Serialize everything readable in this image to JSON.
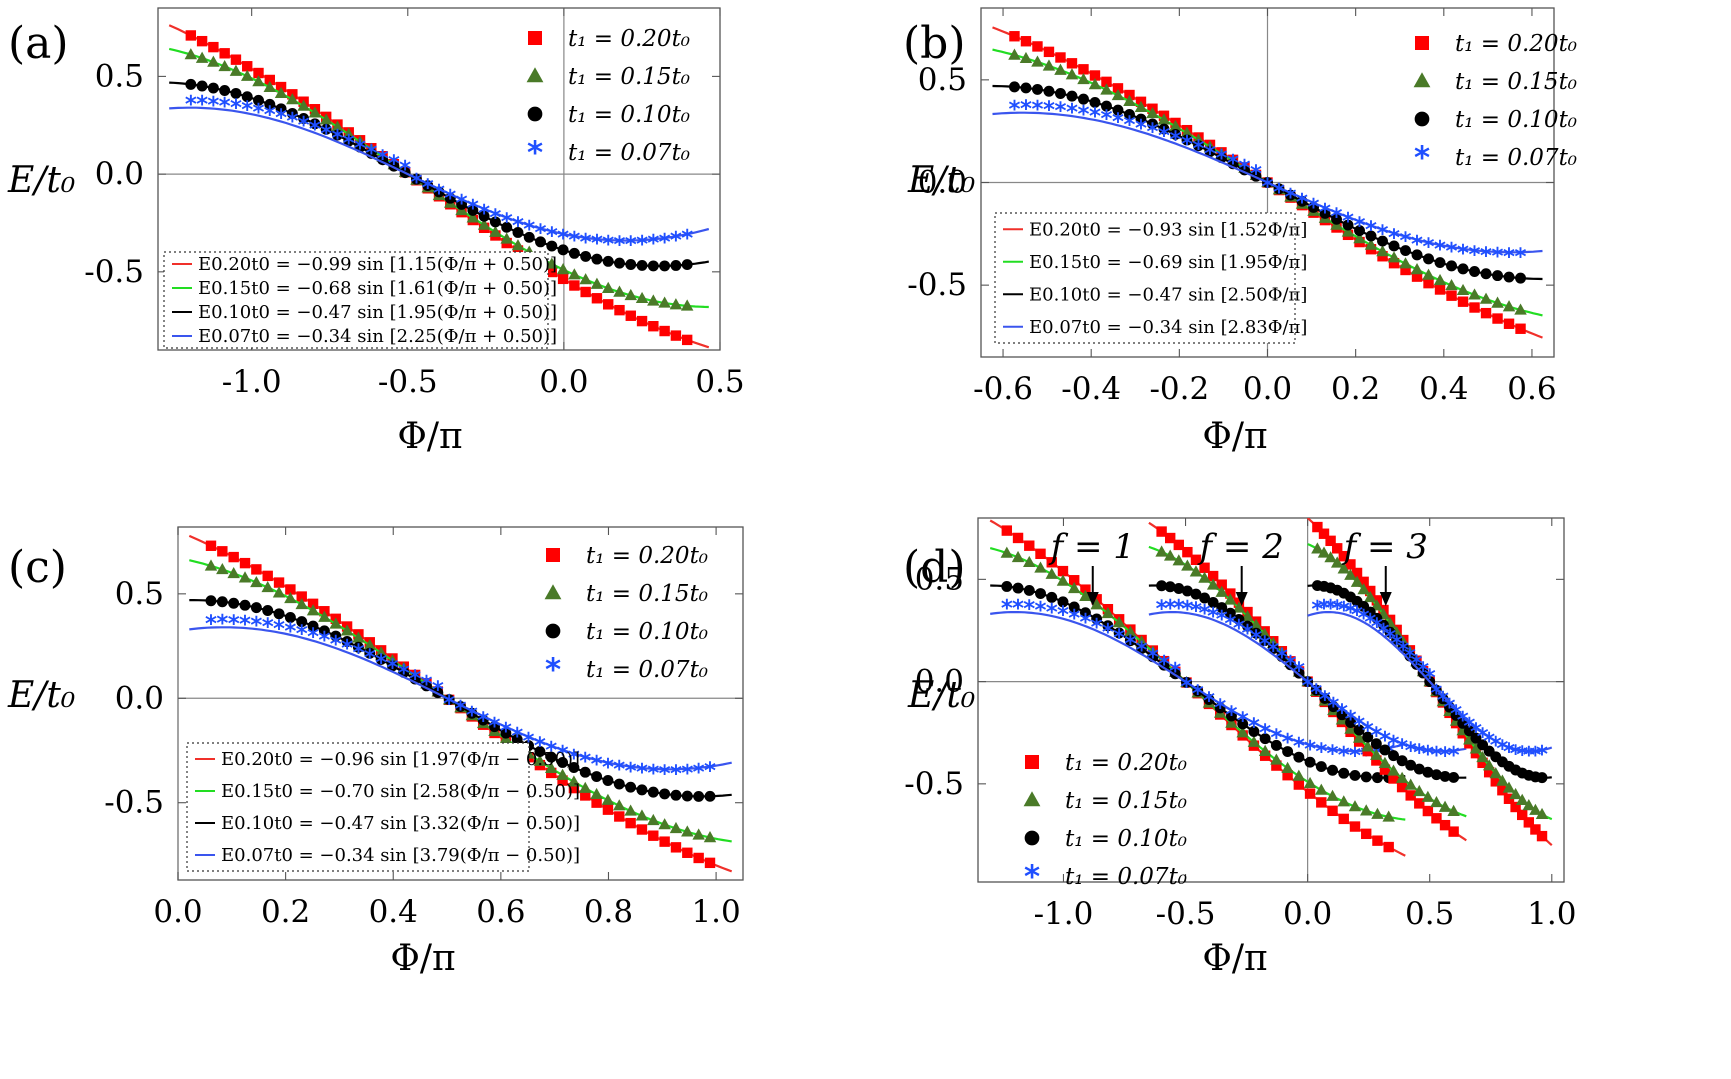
{
  "figure": {
    "y_axis_label": "E/t₀",
    "x_axis_label": "Φ/π",
    "legend_entries": [
      {
        "label": "t₁ = 0.20t₀",
        "color": "#ff0000",
        "marker": "square"
      },
      {
        "label": "t₁ = 0.15t₀",
        "color": "#4a7a28",
        "marker": "triangle"
      },
      {
        "label": "t₁ = 0.10t₀",
        "color": "#000000",
        "marker": "circle"
      },
      {
        "label": "t₁ = 0.07t₀",
        "color": "#1f4fff",
        "marker": "asterisk"
      }
    ]
  },
  "chart_data": [
    {
      "type": "scatter",
      "panel": "(a)",
      "xlabel": "Φ/π",
      "ylabel": "E/t₀",
      "xlim": [
        -1.3,
        0.5
      ],
      "ylim": [
        -0.9,
        0.85
      ],
      "xticks": [
        "-1.0",
        "-0.5",
        "0.0",
        "0.5"
      ],
      "yticks": [
        "0.5",
        "0.0",
        "-0.5"
      ],
      "legend_placement": "top-right",
      "fit_legend_placement": "bottom-left",
      "series": [
        {
          "name": "t₁ = 0.20t₀",
          "amp": 0.99,
          "k": 1.15,
          "shift": 0.5,
          "fit": "E0.20t0 = −0.99 sin [1.15(Φ/π + 0.50)]"
        },
        {
          "name": "t₁ = 0.15t₀",
          "amp": 0.68,
          "k": 1.61,
          "shift": 0.5,
          "fit": "E0.15t0 = −0.68 sin [1.61(Φ/π + 0.50)]"
        },
        {
          "name": "t₁ = 0.10t₀",
          "amp": 0.47,
          "k": 1.95,
          "shift": 0.5,
          "fit": "E0.10t0 = −0.47 sin [1.95(Φ/π + 0.50)]"
        },
        {
          "name": "t₁ = 0.07t₀",
          "amp": 0.34,
          "k": 2.25,
          "shift": 0.5,
          "fit": "E0.07t0 = −0.34 sin [2.25(Φ/π + 0.50)]"
        }
      ]
    },
    {
      "type": "scatter",
      "panel": "(b)",
      "xlabel": "Φ/π",
      "ylabel": "E/t₀",
      "xlim": [
        -0.65,
        0.65
      ],
      "ylim": [
        -0.85,
        0.85
      ],
      "xticks": [
        "-0.6",
        "-0.4",
        "-0.2",
        "0.0",
        "0.2",
        "0.4",
        "0.6"
      ],
      "yticks": [
        "0.5",
        "0.0",
        "-0.5"
      ],
      "legend_placement": "top-right",
      "fit_legend_placement": "bottom-left",
      "series": [
        {
          "name": "t₁ = 0.20t₀",
          "amp": 0.93,
          "k": 1.52,
          "shift": 0,
          "fit": "E0.20t0 = −0.93 sin [1.52Φ/π]"
        },
        {
          "name": "t₁ = 0.15t₀",
          "amp": 0.69,
          "k": 1.95,
          "shift": 0,
          "fit": "E0.15t0 = −0.69 sin [1.95Φ/π]"
        },
        {
          "name": "t₁ = 0.10t₀",
          "amp": 0.47,
          "k": 2.5,
          "shift": 0,
          "fit": "E0.10t0 = −0.47 sin [2.50Φ/π]"
        },
        {
          "name": "t₁ = 0.07t₀",
          "amp": 0.34,
          "k": 2.83,
          "shift": 0,
          "fit": "E0.07t0 = −0.34 sin [2.83Φ/π]"
        }
      ]
    },
    {
      "type": "scatter",
      "panel": "(c)",
      "xlabel": "Φ/π",
      "ylabel": "E/t₀",
      "xlim": [
        0.0,
        1.05
      ],
      "ylim": [
        -0.87,
        0.82
      ],
      "xticks": [
        "0.0",
        "0.2",
        "0.4",
        "0.6",
        "0.8",
        "1.0"
      ],
      "yticks": [
        "0.5",
        "0.0",
        "-0.5"
      ],
      "legend_placement": "top-right",
      "fit_legend_placement": "bottom-left",
      "series": [
        {
          "name": "t₁ = 0.20t₀",
          "amp": 0.96,
          "k": 1.97,
          "shift": -0.5,
          "fit": "E0.20t0 = −0.96 sin [1.97(Φ/π − 0.50)]"
        },
        {
          "name": "t₁ = 0.15t₀",
          "amp": 0.7,
          "k": 2.58,
          "shift": -0.5,
          "fit": "E0.15t0 = −0.70 sin [2.58(Φ/π − 0.50)]"
        },
        {
          "name": "t₁ = 0.10t₀",
          "amp": 0.47,
          "k": 3.32,
          "shift": -0.5,
          "fit": "E0.10t0 = −0.47 sin [3.32(Φ/π − 0.50)]"
        },
        {
          "name": "t₁ = 0.07t₀",
          "amp": 0.34,
          "k": 3.79,
          "shift": -0.5,
          "fit": "E0.07t0 = −0.34 sin [3.79(Φ/π − 0.50)]"
        }
      ]
    },
    {
      "type": "scatter",
      "panel": "(d)",
      "xlabel": "Φ/π",
      "ylabel": "E/t₀",
      "xlim": [
        -1.35,
        1.05
      ],
      "ylim": [
        -0.98,
        0.8
      ],
      "xticks": [
        "-1.0",
        "-0.5",
        "0.0",
        "0.5",
        "1.0"
      ],
      "yticks": [
        "0.5",
        "0.0",
        "-0.5"
      ],
      "legend_placement": "bottom-left",
      "annotations": [
        {
          "text": "f = 1",
          "arrow_x": -0.88
        },
        {
          "text": "f = 2",
          "arrow_x": -0.27
        },
        {
          "text": "f = 3",
          "arrow_x": 0.32
        }
      ],
      "groups": [
        {
          "label": "f = 1",
          "series": [
            {
              "name": "t₁ = 0.20t₀",
              "amp": 0.99,
              "k": 1.15,
              "shift": 0.5,
              "xmin": -1.3,
              "xmax": 0.4
            },
            {
              "name": "t₁ = 0.15t₀",
              "amp": 0.68,
              "k": 1.61,
              "shift": 0.5,
              "xmin": -1.3,
              "xmax": 0.4
            },
            {
              "name": "t₁ = 0.10t₀",
              "amp": 0.47,
              "k": 1.95,
              "shift": 0.5,
              "xmin": -1.3,
              "xmax": 0.4
            },
            {
              "name": "t₁ = 0.07t₀",
              "amp": 0.34,
              "k": 2.25,
              "shift": 0.5,
              "xmin": -1.3,
              "xmax": 0.4
            }
          ]
        },
        {
          "label": "f = 2",
          "series": [
            {
              "name": "t₁ = 0.20t₀",
              "amp": 0.93,
              "k": 1.52,
              "shift": 0,
              "xmin": -0.65,
              "xmax": 0.65
            },
            {
              "name": "t₁ = 0.15t₀",
              "amp": 0.69,
              "k": 1.95,
              "shift": 0,
              "xmin": -0.65,
              "xmax": 0.65
            },
            {
              "name": "t₁ = 0.10t₀",
              "amp": 0.47,
              "k": 2.5,
              "shift": 0,
              "xmin": -0.65,
              "xmax": 0.65
            },
            {
              "name": "t₁ = 0.07t₀",
              "amp": 0.34,
              "k": 2.83,
              "shift": 0,
              "xmin": -0.65,
              "xmax": 0.65
            }
          ]
        },
        {
          "label": "f = 3",
          "series": [
            {
              "name": "t₁ = 0.20t₀",
              "amp": 0.96,
              "k": 1.97,
              "shift": -0.5,
              "xmin": 0.0,
              "xmax": 1.0
            },
            {
              "name": "t₁ = 0.15t₀",
              "amp": 0.7,
              "k": 2.58,
              "shift": -0.5,
              "xmin": 0.0,
              "xmax": 1.0
            },
            {
              "name": "t₁ = 0.10t₀",
              "amp": 0.47,
              "k": 3.32,
              "shift": -0.5,
              "xmin": 0.0,
              "xmax": 1.0
            },
            {
              "name": "t₁ = 0.07t₀",
              "amp": 0.34,
              "k": 3.79,
              "shift": -0.5,
              "xmin": 0.0,
              "xmax": 1.0
            }
          ]
        }
      ]
    }
  ]
}
